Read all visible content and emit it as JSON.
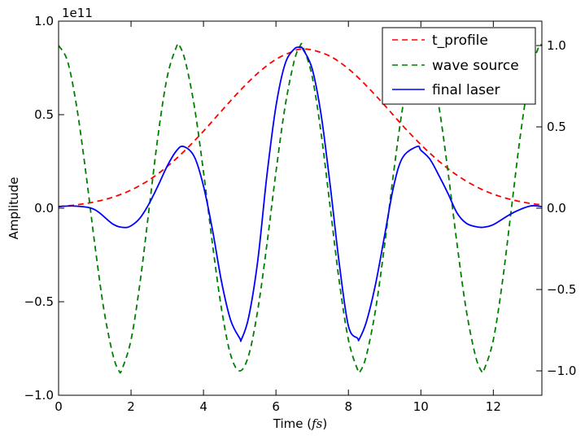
{
  "chart_data": {
    "type": "line",
    "xlabel": "Time (fs)",
    "xlabel_parts": {
      "main": "Time (",
      "unit": "fs",
      "close": ")"
    },
    "ylabel": "Amplitude",
    "offset_text": "1e11",
    "xlim": [
      0,
      13.34
    ],
    "ylim_left": [
      -100000000000.0,
      100000000000.0
    ],
    "ylim_right": [
      -1.15,
      1.15
    ],
    "x_ticks": [
      0,
      2,
      4,
      6,
      8,
      10,
      12
    ],
    "x_tick_labels": [
      "0",
      "2",
      "4",
      "6",
      "8",
      "10",
      "12"
    ],
    "y_left_ticks": [
      -1.0,
      -0.5,
      0.0,
      0.5,
      1.0
    ],
    "y_left_tick_labels": [
      "−1.0",
      "−0.5",
      "0.0",
      "0.5",
      "1.0"
    ],
    "y_right_ticks": [
      -1.0,
      -0.5,
      0.0,
      0.5,
      1.0
    ],
    "y_right_tick_labels": [
      "−1.0",
      "−0.5",
      "0.0",
      "0.5",
      "1.0"
    ],
    "grid": false,
    "legend_position": "top-right",
    "series": [
      {
        "name": "t_profile",
        "axis": "left",
        "style": "dashed",
        "color": "#ff0000",
        "x": [
          0,
          0.5,
          1,
          1.5,
          2,
          2.5,
          3,
          3.5,
          4,
          4.5,
          5,
          5.5,
          6,
          6.5,
          6.67,
          7,
          7.5,
          8,
          8.5,
          9,
          9.5,
          10,
          10.5,
          11,
          11.5,
          12,
          12.5,
          13,
          13.34
        ],
        "y": [
          0.009,
          0.018,
          0.034,
          0.059,
          0.097,
          0.151,
          0.223,
          0.311,
          0.412,
          0.521,
          0.627,
          0.722,
          0.796,
          0.841,
          0.85,
          0.846,
          0.812,
          0.745,
          0.654,
          0.55,
          0.441,
          0.34,
          0.251,
          0.176,
          0.118,
          0.075,
          0.046,
          0.026,
          0.018
        ]
      },
      {
        "name": "wave source",
        "axis": "right",
        "style": "dashed",
        "color": "#007f00",
        "x": [
          0,
          0.25,
          0.5,
          0.75,
          1,
          1.25,
          1.5,
          1.667,
          1.75,
          2,
          2.25,
          2.5,
          2.75,
          3,
          3.25,
          3.333,
          3.5,
          3.75,
          4,
          4.25,
          4.5,
          4.75,
          5,
          5.25,
          5.5,
          5.75,
          6,
          6.25,
          6.5,
          6.67,
          6.75,
          7,
          7.25,
          7.5,
          7.75,
          8,
          8.25,
          8.333,
          8.5,
          8.75,
          9,
          9.25,
          9.5,
          9.75,
          10,
          10.25,
          10.5,
          10.75,
          11,
          11.25,
          11.5,
          11.667,
          11.75,
          12,
          12.25,
          12.5,
          12.75,
          13,
          13.25,
          13.34
        ],
        "y": [
          1.0,
          0.902,
          0.623,
          0.223,
          -0.223,
          -0.623,
          -0.902,
          -1.0,
          -0.99,
          -0.809,
          -0.454,
          0.0,
          0.454,
          0.809,
          0.99,
          1.0,
          0.902,
          0.623,
          0.223,
          -0.223,
          -0.623,
          -0.902,
          -1.0,
          -0.902,
          -0.623,
          -0.223,
          0.223,
          0.623,
          0.902,
          1.0,
          0.99,
          0.809,
          0.454,
          0.0,
          -0.454,
          -0.809,
          -0.99,
          -1.0,
          -0.902,
          -0.623,
          -0.223,
          0.223,
          0.623,
          0.902,
          1.0,
          0.902,
          0.623,
          0.223,
          -0.223,
          -0.623,
          -0.902,
          -1.0,
          -0.99,
          -0.809,
          -0.454,
          0.0,
          0.454,
          0.809,
          0.99,
          1.0
        ]
      },
      {
        "name": "final laser",
        "axis": "left",
        "style": "solid",
        "color": "#0000ff",
        "x": [
          0,
          0.5,
          1,
          1.5,
          1.8,
          2,
          2.25,
          2.5,
          2.75,
          3,
          3.25,
          3.45,
          3.75,
          4,
          4.25,
          4.5,
          4.75,
          5,
          5.05,
          5.25,
          5.5,
          5.75,
          6,
          6.25,
          6.5,
          6.67,
          6.75,
          7,
          7.25,
          7.5,
          7.75,
          8,
          8.25,
          8.3,
          8.5,
          8.75,
          9,
          9.25,
          9.5,
          9.9,
          10,
          10.25,
          10.5,
          10.75,
          11,
          11.25,
          11.5,
          11.7,
          12,
          12.5,
          13,
          13.34
        ],
        "y": [
          0.009,
          0.011,
          -0.008,
          -0.085,
          -0.103,
          -0.094,
          -0.052,
          0.025,
          0.122,
          0.226,
          0.306,
          0.33,
          0.274,
          0.118,
          -0.118,
          -0.395,
          -0.599,
          -0.695,
          -0.7,
          -0.58,
          -0.277,
          0.175,
          0.545,
          0.77,
          0.85,
          0.86,
          0.848,
          0.745,
          0.495,
          0.117,
          -0.3,
          -0.63,
          -0.695,
          -0.7,
          -0.605,
          -0.405,
          -0.145,
          0.118,
          0.272,
          0.33,
          0.31,
          0.262,
          0.174,
          0.078,
          -0.026,
          -0.08,
          -0.098,
          -0.102,
          -0.088,
          -0.029,
          0.011,
          0.009
        ]
      }
    ]
  }
}
